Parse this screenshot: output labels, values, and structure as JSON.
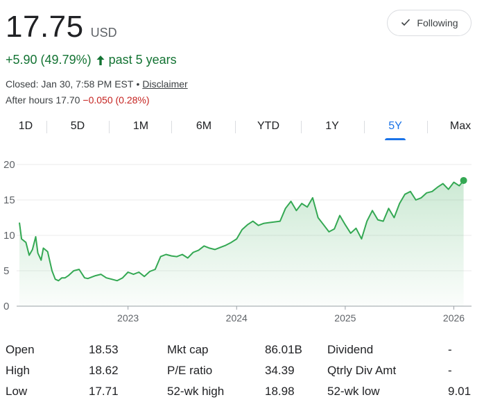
{
  "quote": {
    "price": "17.75",
    "currency": "USD",
    "change_text": "+5.90 (49.79%)",
    "change_period": "past 5 years",
    "closed_text": "Closed: Jan 30, 7:58 PM EST",
    "separator": "•",
    "disclaimer_label": "Disclaimer",
    "after_hours_text": "After hours 17.70",
    "after_hours_change": "−0.050 (0.28%)"
  },
  "follow_button": {
    "label": "Following",
    "icon": "check-icon"
  },
  "range_tabs": [
    {
      "label": "1D"
    },
    {
      "label": "5D"
    },
    {
      "label": "1M"
    },
    {
      "label": "6M"
    },
    {
      "label": "YTD"
    },
    {
      "label": "1Y"
    },
    {
      "label": "5Y",
      "active": true
    },
    {
      "label": "Max"
    }
  ],
  "colors": {
    "accent": "#1a73e8",
    "positive": "#137333",
    "negative": "#c5221f",
    "line": "#34a853"
  },
  "chart_data": {
    "type": "area",
    "y_ticks": [
      "20",
      "15",
      "10",
      "5",
      "0"
    ],
    "x_ticks": [
      "2023",
      "2024",
      "2025",
      "2026"
    ],
    "ylim": [
      0,
      20
    ],
    "xlim": [
      2022.0,
      2026.15
    ],
    "grid": true,
    "series": [
      {
        "x": [
          2022.0,
          2022.02,
          2022.06,
          2022.09,
          2022.12,
          2022.15,
          2022.17,
          2022.2,
          2022.22,
          2022.26,
          2022.3,
          2022.33,
          2022.36,
          2022.39,
          2022.42,
          2022.45,
          2022.5,
          2022.55,
          2022.6,
          2022.63,
          2022.7,
          2022.75,
          2022.8,
          2022.85,
          2022.9,
          2022.95,
          2023.0,
          2023.05,
          2023.1,
          2023.15,
          2023.2,
          2023.25,
          2023.3,
          2023.35,
          2023.4,
          2023.45,
          2023.5,
          2023.55,
          2023.6,
          2023.65,
          2023.7,
          2023.75,
          2023.8,
          2023.85,
          2023.9,
          2023.95,
          2024.0,
          2024.05,
          2024.1,
          2024.15,
          2024.2,
          2024.25,
          2024.3,
          2024.35,
          2024.4,
          2024.45,
          2024.5,
          2024.55,
          2024.6,
          2024.65,
          2024.7,
          2024.75,
          2024.8,
          2024.85,
          2024.9,
          2024.95,
          2025.0,
          2025.05,
          2025.1,
          2025.15,
          2025.2,
          2025.25,
          2025.3,
          2025.35,
          2025.4,
          2025.45,
          2025.5,
          2025.55,
          2025.6,
          2025.65,
          2025.7,
          2025.75,
          2025.8,
          2025.85,
          2025.9,
          2025.95,
          2026.0,
          2026.05,
          2026.09
        ],
        "values": [
          11.8,
          9.5,
          9.0,
          7.2,
          8.0,
          9.8,
          7.5,
          6.5,
          8.2,
          7.7,
          5.0,
          3.8,
          3.6,
          4.0,
          4.0,
          4.3,
          5.0,
          5.2,
          4.0,
          3.9,
          4.3,
          4.5,
          4.0,
          3.8,
          3.6,
          4.0,
          4.8,
          4.5,
          4.8,
          4.2,
          4.9,
          5.2,
          7.0,
          7.3,
          7.1,
          7.0,
          7.3,
          6.8,
          7.6,
          7.9,
          8.5,
          8.2,
          8.0,
          8.3,
          8.6,
          9.0,
          9.5,
          10.8,
          11.5,
          12.0,
          11.4,
          11.7,
          11.8,
          11.9,
          12.0,
          13.8,
          14.8,
          13.5,
          14.5,
          14.0,
          15.3,
          12.5,
          11.5,
          10.5,
          10.9,
          12.8,
          11.5,
          10.3,
          11.0,
          9.5,
          12.0,
          13.5,
          12.2,
          12.0,
          13.8,
          12.5,
          14.5,
          15.8,
          16.2,
          15.0,
          15.3,
          16.0,
          16.2,
          16.8,
          17.3,
          16.5,
          17.5,
          17.0,
          17.75
        ]
      }
    ]
  },
  "stats": [
    [
      {
        "label": "Open",
        "value": "18.53"
      },
      {
        "label": "Mkt cap",
        "value": "86.01B"
      },
      {
        "label": "Dividend",
        "value": "-"
      }
    ],
    [
      {
        "label": "High",
        "value": "18.62"
      },
      {
        "label": "P/E ratio",
        "value": "34.39"
      },
      {
        "label": "Qtrly Div Amt",
        "value": "-"
      }
    ],
    [
      {
        "label": "Low",
        "value": "17.71"
      },
      {
        "label": "52-wk high",
        "value": "18.98"
      },
      {
        "label": "52-wk low",
        "value": "9.01"
      }
    ]
  ]
}
